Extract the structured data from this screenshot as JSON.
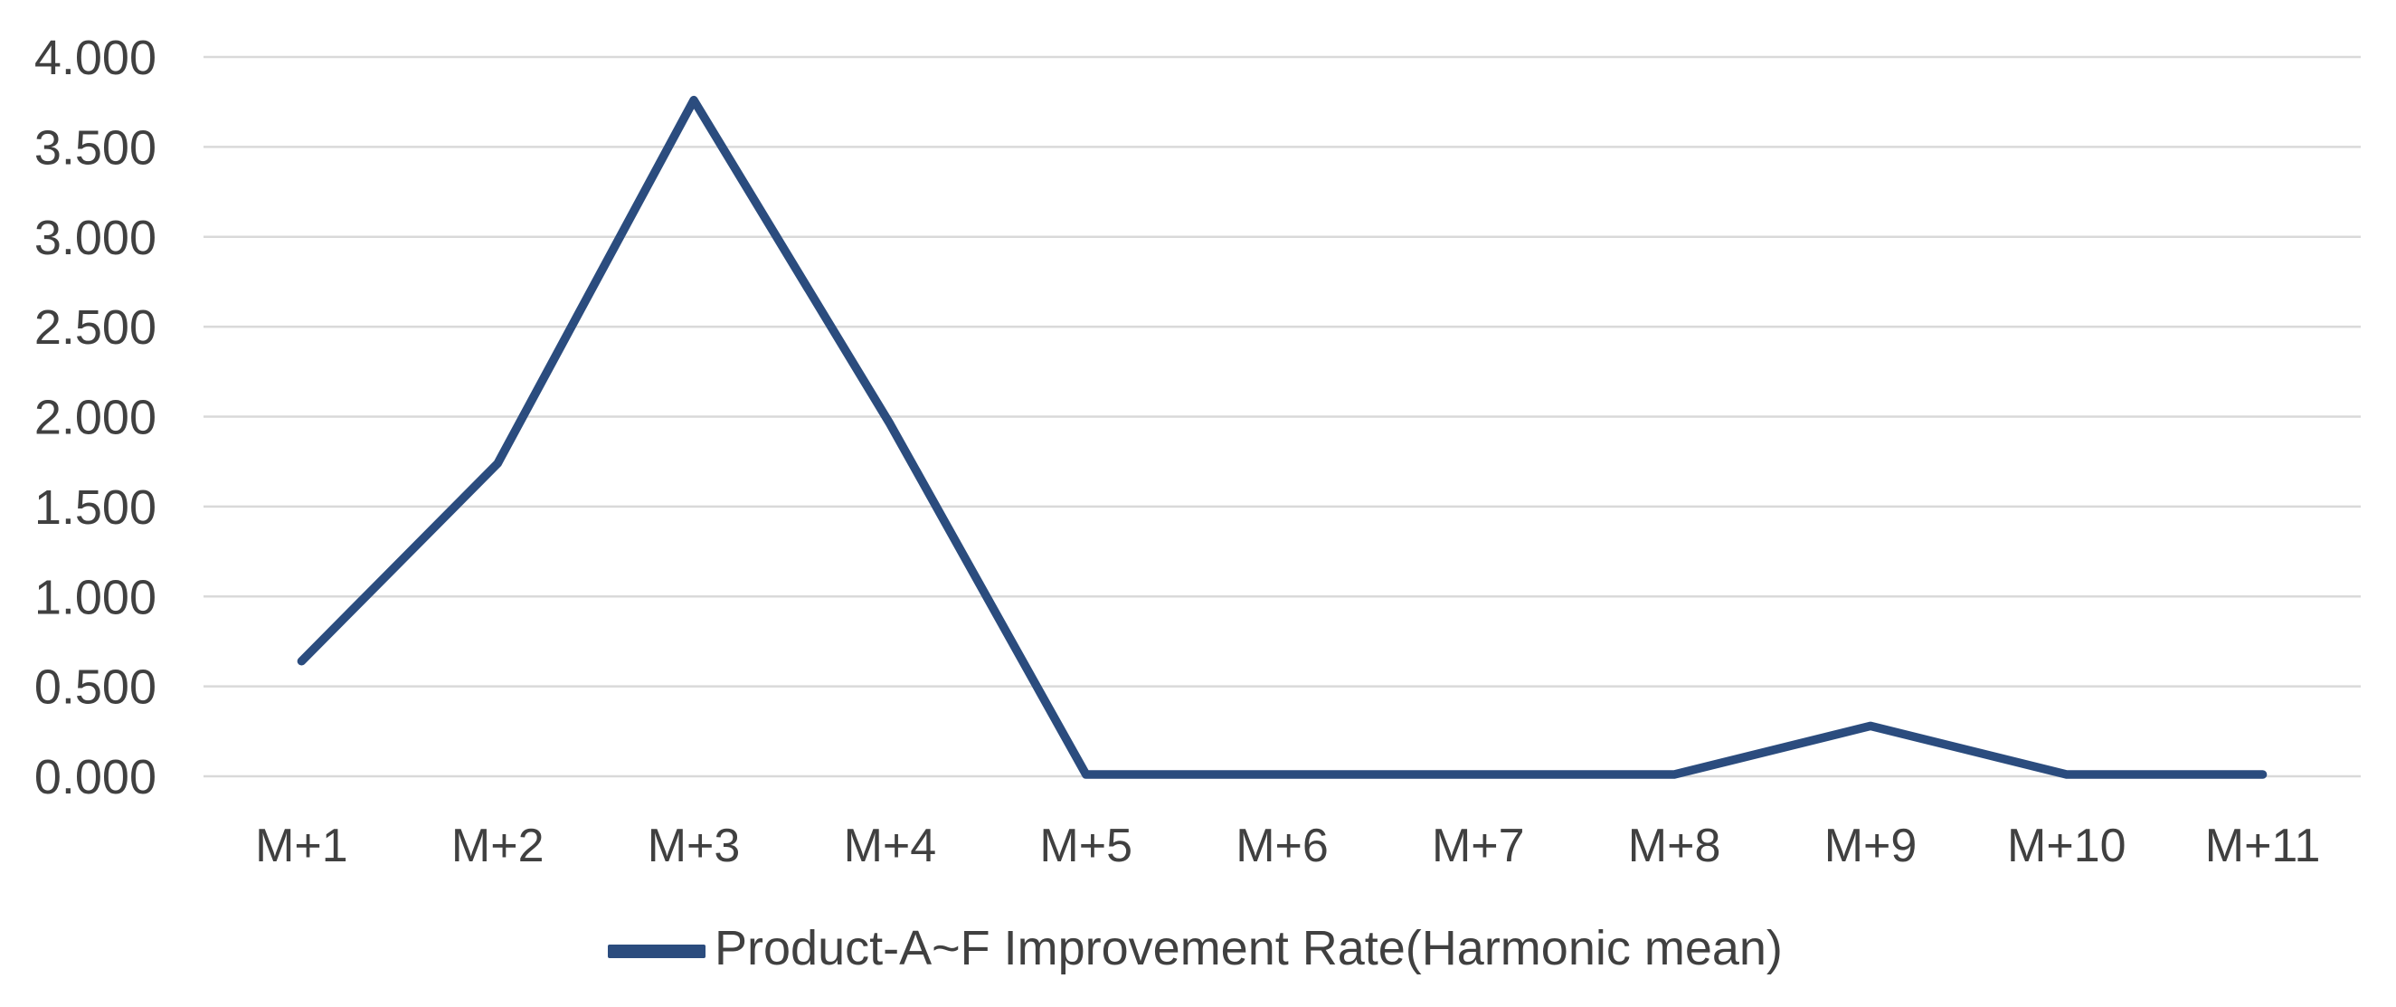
{
  "chart_data": {
    "type": "line",
    "categories": [
      "M+1",
      "M+2",
      "M+3",
      "M+4",
      "M+5",
      "M+6",
      "M+7",
      "M+8",
      "M+9",
      "M+10",
      "M+11"
    ],
    "series": [
      {
        "name": "Product-A~F Improvement Rate(Harmonic mean)",
        "values": [
          0.64,
          1.74,
          3.76,
          1.96,
          0.01,
          0.01,
          0.01,
          0.01,
          0.28,
          0.01,
          0.01
        ]
      }
    ],
    "title": "",
    "xlabel": "",
    "ylabel": "",
    "ylim": [
      0,
      4
    ],
    "ytick_step": 0.5,
    "ytick_labels": [
      "4.000",
      "3.500",
      "3.000",
      "2.500",
      "2.000",
      "1.500",
      "1.000",
      "0.500",
      "0.000"
    ],
    "grid": "horizontal-only",
    "legend_position": "bottom-center",
    "colors": {
      "line": "#2b4c7e",
      "gridline": "#d9d9d9",
      "tick_text": "#404040",
      "legend_text": "#404040",
      "background": "#ffffff"
    }
  }
}
